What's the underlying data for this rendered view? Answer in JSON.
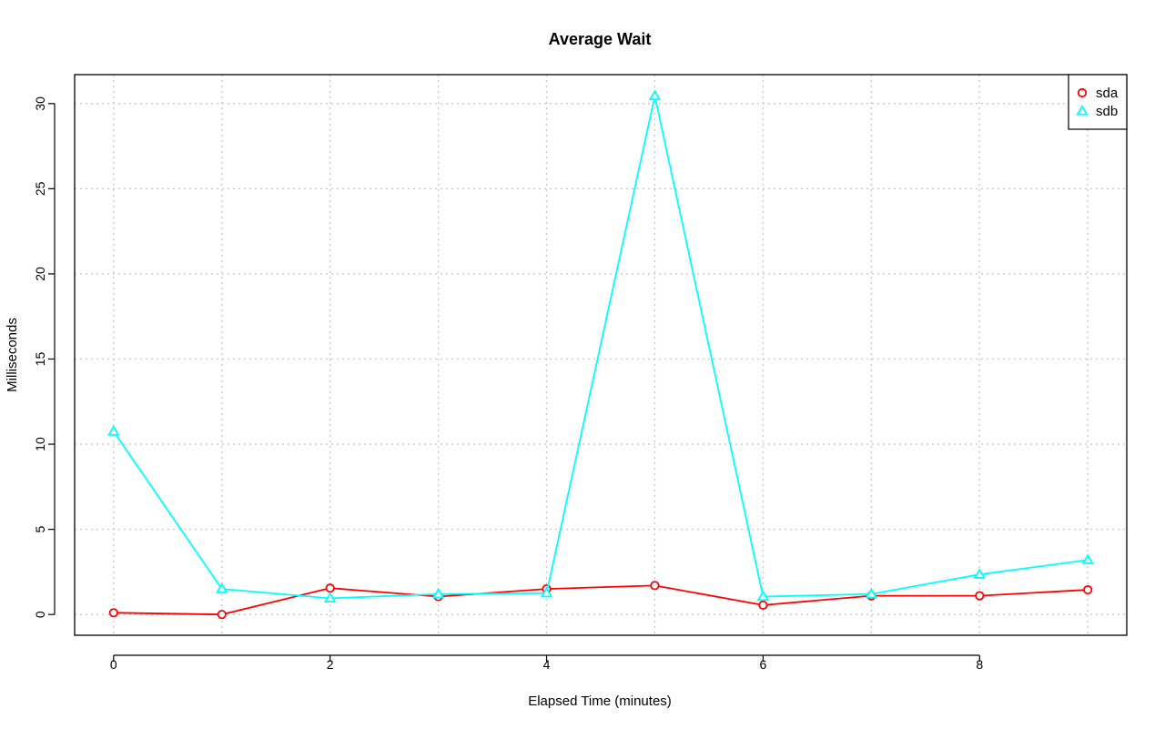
{
  "chart_data": {
    "type": "line",
    "title": "Average Wait",
    "xlabel": "Elapsed Time (minutes)",
    "ylabel": "Milliseconds",
    "x": [
      0,
      1,
      2,
      3,
      4,
      5,
      6,
      7,
      8,
      9
    ],
    "xlim": [
      -0.36,
      9.36
    ],
    "ylim": [
      -1.22,
      31.7
    ],
    "xticks": [
      0,
      2,
      4,
      6,
      8
    ],
    "xtick_labels": [
      "0",
      "2",
      "4",
      "6",
      "8"
    ],
    "yticks": [
      0,
      5,
      10,
      15,
      20,
      25,
      30
    ],
    "ytick_labels": [
      "0",
      "5",
      "10",
      "15",
      "20",
      "25",
      "30"
    ],
    "grid": true,
    "legend_position": "top-right",
    "series": [
      {
        "name": "sda",
        "color": "#ff0000",
        "marker": "circle",
        "values": [
          0.1,
          0.0,
          1.55,
          1.05,
          1.5,
          1.7,
          0.55,
          1.1,
          1.1,
          1.45
        ]
      },
      {
        "name": "sdb",
        "color": "#00ffff",
        "marker": "triangle",
        "values": [
          10.75,
          1.5,
          0.95,
          1.2,
          1.25,
          30.45,
          1.05,
          1.2,
          2.35,
          3.2
        ]
      }
    ]
  }
}
